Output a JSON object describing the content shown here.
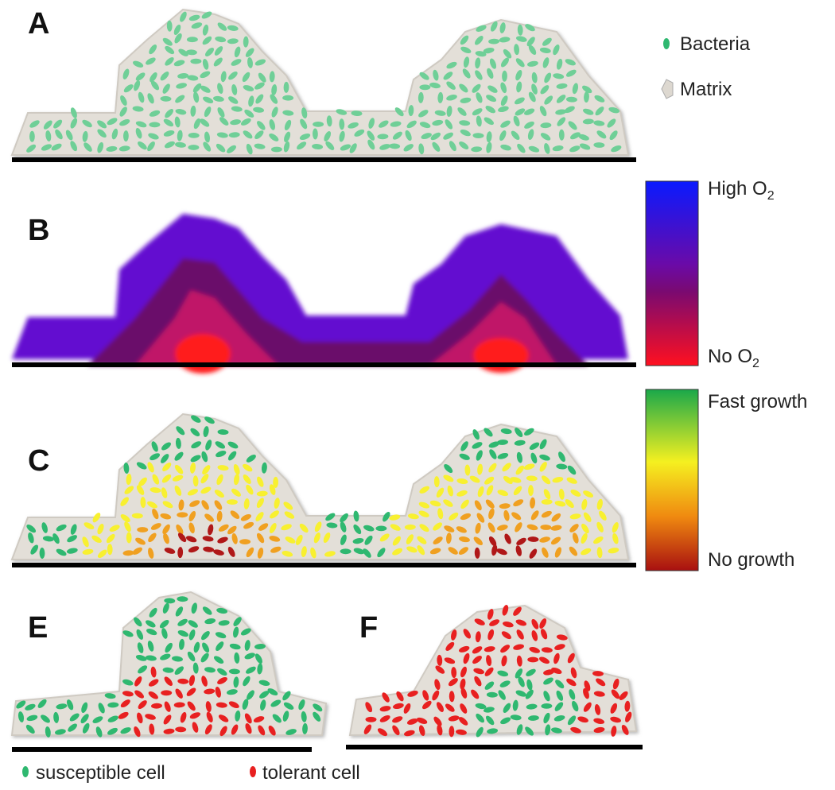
{
  "panels": [
    "A",
    "B",
    "C",
    "E",
    "F"
  ],
  "legend": {
    "bacteria": "Bacteria",
    "matrix": "Matrix"
  },
  "oxygen_scale": {
    "high": {
      "text": "High O",
      "sub": "2"
    },
    "low": {
      "text": "No O",
      "sub": "2"
    }
  },
  "growth_scale": {
    "high": "Fast growth",
    "low": "No growth"
  },
  "cell_legend": {
    "susceptible": "susceptible cell",
    "tolerant": "tolerant cell"
  }
}
